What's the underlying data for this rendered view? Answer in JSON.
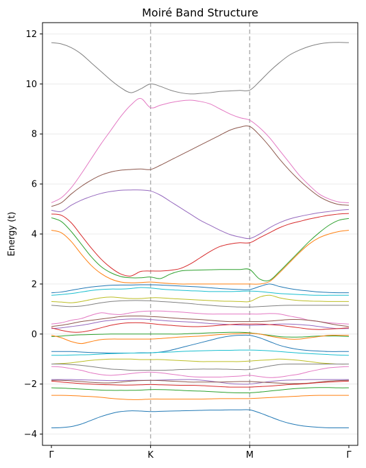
{
  "chart_data": {
    "type": "line",
    "title": "Moiré Band Structure",
    "xlabel": "",
    "ylabel": "Energy (t)",
    "x": [
      0,
      0.1,
      0.2,
      0.3,
      0.4,
      0.5,
      0.6,
      0.7,
      0.8,
      0.9,
      1,
      1.1,
      1.2,
      1.3,
      1.4,
      1.5,
      1.6,
      1.7,
      1.8,
      1.9,
      2,
      2.1,
      2.2,
      2.3,
      2.4,
      2.5,
      2.6,
      2.7,
      2.8,
      2.9,
      3
    ],
    "xlim": [
      -0.09,
      3.09
    ],
    "xticks": [
      {
        "value": 0,
        "label": "Γ"
      },
      {
        "value": 1,
        "label": "K"
      },
      {
        "value": 2,
        "label": "M"
      },
      {
        "value": 3,
        "label": "Γ"
      }
    ],
    "ylim": [
      -4.45,
      12.45
    ],
    "yticks": [
      -4,
      -2,
      0,
      2,
      4,
      6,
      8,
      10,
      12
    ],
    "grid": "horizontal",
    "vlines": [
      1,
      2
    ],
    "legend": "none",
    "series": [
      {
        "color": "#7f7f7f",
        "values": [
          11.65,
          11.6,
          11.45,
          11.2,
          10.85,
          10.5,
          10.15,
          9.85,
          9.65,
          9.8,
          10.0,
          9.9,
          9.75,
          9.65,
          9.6,
          9.62,
          9.65,
          9.7,
          9.72,
          9.74,
          9.75,
          10.1,
          10.5,
          10.85,
          11.15,
          11.35,
          11.5,
          11.6,
          11.65,
          11.66,
          11.65
        ]
      },
      {
        "color": "#e377c2",
        "values": [
          5.25,
          5.45,
          5.85,
          6.4,
          7.0,
          7.6,
          8.15,
          8.7,
          9.15,
          9.42,
          9.05,
          9.15,
          9.25,
          9.32,
          9.35,
          9.3,
          9.2,
          9.0,
          8.8,
          8.65,
          8.55,
          8.25,
          7.85,
          7.35,
          6.85,
          6.35,
          5.95,
          5.6,
          5.4,
          5.28,
          5.25
        ]
      },
      {
        "color": "#8c564b",
        "values": [
          5.1,
          5.25,
          5.6,
          5.9,
          6.15,
          6.35,
          6.48,
          6.55,
          6.58,
          6.6,
          6.58,
          6.75,
          6.95,
          7.15,
          7.35,
          7.55,
          7.75,
          7.95,
          8.15,
          8.27,
          8.3,
          7.95,
          7.5,
          7.0,
          6.55,
          6.15,
          5.8,
          5.5,
          5.3,
          5.18,
          5.15
        ]
      },
      {
        "color": "#9467bd",
        "values": [
          4.95,
          4.9,
          5.15,
          5.35,
          5.5,
          5.62,
          5.7,
          5.75,
          5.76,
          5.76,
          5.72,
          5.55,
          5.3,
          5.05,
          4.8,
          4.55,
          4.35,
          4.15,
          3.98,
          3.88,
          3.82,
          4.0,
          4.25,
          4.45,
          4.6,
          4.7,
          4.78,
          4.85,
          4.9,
          4.95,
          4.98
        ]
      },
      {
        "color": "#d62728",
        "values": [
          4.8,
          4.75,
          4.45,
          3.95,
          3.45,
          3.0,
          2.65,
          2.4,
          2.32,
          2.5,
          2.52,
          2.52,
          2.55,
          2.62,
          2.8,
          3.05,
          3.3,
          3.5,
          3.6,
          3.65,
          3.65,
          3.85,
          4.05,
          4.25,
          4.4,
          4.5,
          4.6,
          4.68,
          4.75,
          4.8,
          4.82
        ]
      },
      {
        "color": "#2ca02c",
        "values": [
          4.65,
          4.5,
          4.1,
          3.6,
          3.1,
          2.7,
          2.45,
          2.3,
          2.25,
          2.25,
          2.28,
          2.22,
          2.4,
          2.52,
          2.55,
          2.56,
          2.57,
          2.58,
          2.58,
          2.58,
          2.58,
          2.2,
          2.15,
          2.5,
          2.9,
          3.3,
          3.7,
          4.05,
          4.35,
          4.55,
          4.62
        ]
      },
      {
        "color": "#ff7f0e",
        "values": [
          4.15,
          4.05,
          3.7,
          3.2,
          2.75,
          2.42,
          2.2,
          2.08,
          2.05,
          2.06,
          2.08,
          2.05,
          2.02,
          2.0,
          2.0,
          2.0,
          2.0,
          2.0,
          2.0,
          2.0,
          2.0,
          2.0,
          2.1,
          2.45,
          2.85,
          3.25,
          3.6,
          3.85,
          4.0,
          4.1,
          4.15
        ]
      },
      {
        "color": "#1f77b4",
        "values": [
          1.65,
          1.68,
          1.75,
          1.82,
          1.88,
          1.92,
          1.95,
          1.96,
          1.96,
          1.97,
          1.97,
          1.96,
          1.94,
          1.92,
          1.9,
          1.88,
          1.85,
          1.82,
          1.8,
          1.78,
          1.78,
          1.9,
          2.0,
          1.9,
          1.82,
          1.76,
          1.72,
          1.68,
          1.66,
          1.65,
          1.65
        ]
      },
      {
        "color": "#17becf",
        "values": [
          1.55,
          1.58,
          1.62,
          1.68,
          1.74,
          1.78,
          1.8,
          1.8,
          1.82,
          1.86,
          1.84,
          1.8,
          1.77,
          1.75,
          1.73,
          1.72,
          1.7,
          1.7,
          1.7,
          1.71,
          1.72,
          1.7,
          1.66,
          1.62,
          1.6,
          1.58,
          1.56,
          1.55,
          1.55,
          1.55,
          1.55
        ]
      },
      {
        "color": "#bcbd22",
        "values": [
          1.3,
          1.28,
          1.25,
          1.3,
          1.38,
          1.45,
          1.48,
          1.45,
          1.42,
          1.42,
          1.45,
          1.45,
          1.42,
          1.4,
          1.38,
          1.36,
          1.34,
          1.32,
          1.31,
          1.3,
          1.3,
          1.48,
          1.55,
          1.45,
          1.38,
          1.34,
          1.32,
          1.31,
          1.3,
          1.3,
          1.3
        ]
      },
      {
        "color": "#7f7f7f",
        "values": [
          1.15,
          1.12,
          1.1,
          1.12,
          1.18,
          1.25,
          1.3,
          1.33,
          1.34,
          1.34,
          1.33,
          1.3,
          1.28,
          1.25,
          1.22,
          1.18,
          1.15,
          1.12,
          1.1,
          1.08,
          1.08,
          1.1,
          1.12,
          1.14,
          1.15,
          1.15,
          1.15,
          1.15,
          1.15,
          1.15,
          1.15
        ]
      },
      {
        "color": "#e377c2",
        "values": [
          0.4,
          0.45,
          0.55,
          0.62,
          0.75,
          0.85,
          0.8,
          0.78,
          0.85,
          0.9,
          0.92,
          0.92,
          0.9,
          0.88,
          0.85,
          0.82,
          0.8,
          0.8,
          0.8,
          0.8,
          0.8,
          0.8,
          0.82,
          0.8,
          0.72,
          0.65,
          0.55,
          0.5,
          0.45,
          0.42,
          0.4
        ]
      },
      {
        "color": "#8c564b",
        "values": [
          0.3,
          0.35,
          0.42,
          0.5,
          0.55,
          0.6,
          0.65,
          0.7,
          0.72,
          0.72,
          0.7,
          0.68,
          0.65,
          0.62,
          0.6,
          0.58,
          0.55,
          0.52,
          0.5,
          0.5,
          0.5,
          0.5,
          0.52,
          0.55,
          0.58,
          0.58,
          0.55,
          0.5,
          0.42,
          0.35,
          0.3
        ]
      },
      {
        "color": "#9467bd",
        "values": [
          0.22,
          0.25,
          0.3,
          0.35,
          0.42,
          0.5,
          0.55,
          0.58,
          0.6,
          0.6,
          0.58,
          0.55,
          0.52,
          0.5,
          0.48,
          0.45,
          0.42,
          0.4,
          0.38,
          0.36,
          0.35,
          0.36,
          0.38,
          0.4,
          0.4,
          0.38,
          0.35,
          0.3,
          0.25,
          0.22,
          0.22
        ]
      },
      {
        "color": "#d62728",
        "values": [
          0.25,
          0.15,
          0.08,
          0.08,
          0.15,
          0.25,
          0.35,
          0.42,
          0.45,
          0.45,
          0.42,
          0.38,
          0.35,
          0.32,
          0.3,
          0.3,
          0.32,
          0.35,
          0.38,
          0.4,
          0.4,
          0.4,
          0.38,
          0.35,
          0.3,
          0.25,
          0.2,
          0.18,
          0.2,
          0.22,
          0.25
        ]
      },
      {
        "color": "#2ca02c",
        "values": [
          -0.1,
          -0.08,
          -0.05,
          -0.03,
          -0.02,
          -0.01,
          0.0,
          0.0,
          0.0,
          0.0,
          0.0,
          0.0,
          0.0,
          0.0,
          0.02,
          0.03,
          0.05,
          0.06,
          0.07,
          0.07,
          0.05,
          0.0,
          -0.05,
          -0.1,
          -0.12,
          -0.12,
          -0.1,
          -0.08,
          -0.08,
          -0.08,
          -0.1
        ]
      },
      {
        "color": "#ff7f0e",
        "values": [
          -0.05,
          -0.15,
          -0.3,
          -0.38,
          -0.3,
          -0.22,
          -0.2,
          -0.2,
          -0.2,
          -0.2,
          -0.2,
          -0.18,
          -0.15,
          -0.12,
          -0.1,
          -0.08,
          -0.05,
          -0.02,
          0.0,
          0.02,
          0.03,
          0.0,
          -0.08,
          -0.15,
          -0.2,
          -0.2,
          -0.15,
          -0.1,
          -0.05,
          -0.05,
          -0.05
        ]
      },
      {
        "color": "#1f77b4",
        "values": [
          -0.7,
          -0.7,
          -0.7,
          -0.72,
          -0.74,
          -0.75,
          -0.76,
          -0.76,
          -0.76,
          -0.75,
          -0.75,
          -0.72,
          -0.65,
          -0.55,
          -0.45,
          -0.35,
          -0.25,
          -0.15,
          -0.08,
          -0.05,
          -0.05,
          -0.15,
          -0.3,
          -0.45,
          -0.55,
          -0.62,
          -0.66,
          -0.68,
          -0.7,
          -0.7,
          -0.7
        ]
      },
      {
        "color": "#17becf",
        "values": [
          -0.85,
          -0.85,
          -0.84,
          -0.83,
          -0.82,
          -0.8,
          -0.78,
          -0.77,
          -0.76,
          -0.76,
          -0.75,
          -0.73,
          -0.72,
          -0.7,
          -0.68,
          -0.67,
          -0.66,
          -0.65,
          -0.65,
          -0.64,
          -0.64,
          -0.65,
          -0.67,
          -0.7,
          -0.73,
          -0.76,
          -0.78,
          -0.8,
          -0.82,
          -0.84,
          -0.85
        ]
      },
      {
        "color": "#bcbd22",
        "values": [
          -1.2,
          -1.18,
          -1.15,
          -1.1,
          -1.05,
          -1.02,
          -1.0,
          -1.0,
          -1.0,
          -1.02,
          -1.02,
          -1.02,
          -1.04,
          -1.06,
          -1.08,
          -1.1,
          -1.1,
          -1.1,
          -1.1,
          -1.1,
          -1.08,
          -1.05,
          -1.03,
          -1.0,
          -1.02,
          -1.05,
          -1.1,
          -1.15,
          -1.18,
          -1.2,
          -1.2
        ]
      },
      {
        "color": "#7f7f7f",
        "values": [
          -1.2,
          -1.2,
          -1.22,
          -1.25,
          -1.3,
          -1.35,
          -1.4,
          -1.42,
          -1.45,
          -1.45,
          -1.45,
          -1.45,
          -1.44,
          -1.42,
          -1.41,
          -1.4,
          -1.4,
          -1.4,
          -1.41,
          -1.42,
          -1.42,
          -1.35,
          -1.28,
          -1.22,
          -1.2,
          -1.2,
          -1.2,
          -1.2,
          -1.2,
          -1.2,
          -1.2
        ]
      },
      {
        "color": "#e377c2",
        "values": [
          -1.3,
          -1.32,
          -1.38,
          -1.45,
          -1.55,
          -1.62,
          -1.65,
          -1.62,
          -1.58,
          -1.54,
          -1.52,
          -1.55,
          -1.6,
          -1.65,
          -1.7,
          -1.72,
          -1.72,
          -1.72,
          -1.7,
          -1.68,
          -1.65,
          -1.7,
          -1.74,
          -1.72,
          -1.66,
          -1.6,
          -1.5,
          -1.42,
          -1.35,
          -1.32,
          -1.3
        ]
      },
      {
        "color": "#9467bd",
        "values": [
          -1.82,
          -1.82,
          -1.82,
          -1.83,
          -1.84,
          -1.85,
          -1.86,
          -1.86,
          -1.85,
          -1.85,
          -1.85,
          -1.84,
          -1.83,
          -1.82,
          -1.82,
          -1.84,
          -1.88,
          -1.93,
          -1.98,
          -2.0,
          -2.0,
          -1.95,
          -1.9,
          -1.86,
          -1.84,
          -1.83,
          -1.82,
          -1.82,
          -1.82,
          -1.82,
          -1.82
        ]
      },
      {
        "color": "#8c564b",
        "values": [
          -1.85,
          -1.85,
          -1.87,
          -1.9,
          -1.93,
          -1.95,
          -1.95,
          -1.92,
          -1.88,
          -1.86,
          -1.85,
          -1.86,
          -1.88,
          -1.9,
          -1.92,
          -1.92,
          -1.92,
          -1.92,
          -1.91,
          -1.9,
          -1.9,
          -1.92,
          -1.94,
          -1.96,
          -1.98,
          -1.98,
          -1.96,
          -1.92,
          -1.88,
          -1.86,
          -1.85
        ]
      },
      {
        "color": "#d62728",
        "values": [
          -1.88,
          -1.92,
          -1.95,
          -1.98,
          -2.0,
          -2.02,
          -2.03,
          -2.04,
          -2.04,
          -2.03,
          -2.02,
          -2.03,
          -2.04,
          -2.05,
          -2.05,
          -2.06,
          -2.08,
          -2.1,
          -2.12,
          -2.12,
          -2.12,
          -2.1,
          -2.08,
          -2.05,
          -2.02,
          -2.0,
          -1.97,
          -1.94,
          -1.92,
          -1.9,
          -1.88
        ]
      },
      {
        "color": "#2ca02c",
        "values": [
          -2.15,
          -2.16,
          -2.18,
          -2.2,
          -2.22,
          -2.24,
          -2.25,
          -2.25,
          -2.25,
          -2.24,
          -2.22,
          -2.22,
          -2.23,
          -2.25,
          -2.27,
          -2.28,
          -2.3,
          -2.32,
          -2.34,
          -2.35,
          -2.35,
          -2.32,
          -2.28,
          -2.24,
          -2.2,
          -2.17,
          -2.15,
          -2.14,
          -2.14,
          -2.15,
          -2.15
        ]
      },
      {
        "color": "#ff7f0e",
        "values": [
          -2.45,
          -2.45,
          -2.46,
          -2.48,
          -2.5,
          -2.53,
          -2.57,
          -2.6,
          -2.62,
          -2.62,
          -2.6,
          -2.6,
          -2.6,
          -2.6,
          -2.6,
          -2.6,
          -2.59,
          -2.58,
          -2.58,
          -2.58,
          -2.58,
          -2.56,
          -2.54,
          -2.52,
          -2.5,
          -2.48,
          -2.46,
          -2.45,
          -2.45,
          -2.45,
          -2.45
        ]
      },
      {
        "color": "#1f77b4",
        "values": [
          -3.75,
          -3.74,
          -3.7,
          -3.6,
          -3.45,
          -3.3,
          -3.18,
          -3.1,
          -3.07,
          -3.08,
          -3.1,
          -3.09,
          -3.08,
          -3.07,
          -3.06,
          -3.05,
          -3.04,
          -3.04,
          -3.03,
          -3.03,
          -3.03,
          -3.15,
          -3.3,
          -3.45,
          -3.57,
          -3.65,
          -3.7,
          -3.73,
          -3.75,
          -3.75,
          -3.75
        ]
      }
    ]
  }
}
